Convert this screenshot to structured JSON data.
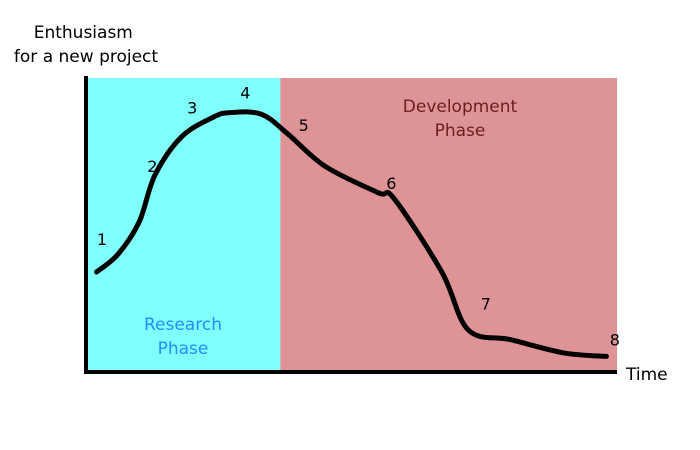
{
  "chart_data": {
    "type": "line",
    "ylabel_lines": [
      "Enthusiasm",
      "for a new project"
    ],
    "xlabel": "Time",
    "xlim": [
      0,
      1
    ],
    "ylim": [
      0,
      1
    ],
    "grid": false,
    "regions": [
      {
        "label_lines": [
          "Research",
          "Phase"
        ],
        "x_range": [
          0,
          0.366
        ],
        "fill": "#80FFFF",
        "text_color": "#1E90FF"
      },
      {
        "label_lines": [
          "Development",
          "Phase"
        ],
        "x_range": [
          0.366,
          1
        ],
        "fill": "#DE9396",
        "text_color": "#6B1F1F"
      }
    ],
    "curve": [
      {
        "x": 0.02,
        "y": 0.34
      },
      {
        "x": 0.06,
        "y": 0.4
      },
      {
        "x": 0.1,
        "y": 0.51
      },
      {
        "x": 0.13,
        "y": 0.67
      },
      {
        "x": 0.18,
        "y": 0.8
      },
      {
        "x": 0.24,
        "y": 0.867
      },
      {
        "x": 0.27,
        "y": 0.882
      },
      {
        "x": 0.33,
        "y": 0.877
      },
      {
        "x": 0.38,
        "y": 0.81
      },
      {
        "x": 0.45,
        "y": 0.7
      },
      {
        "x": 0.55,
        "y": 0.61
      },
      {
        "x": 0.58,
        "y": 0.59
      },
      {
        "x": 0.67,
        "y": 0.34
      },
      {
        "x": 0.72,
        "y": 0.143
      },
      {
        "x": 0.8,
        "y": 0.11
      },
      {
        "x": 0.9,
        "y": 0.065
      },
      {
        "x": 0.98,
        "y": 0.053
      }
    ],
    "points": [
      {
        "label": "1",
        "x": 0.03,
        "y": 0.453
      },
      {
        "label": "2",
        "x": 0.125,
        "y": 0.7
      },
      {
        "label": "3",
        "x": 0.2,
        "y": 0.9
      },
      {
        "label": "4",
        "x": 0.3,
        "y": 0.95
      },
      {
        "label": "5",
        "x": 0.41,
        "y": 0.84
      },
      {
        "label": "6",
        "x": 0.575,
        "y": 0.643
      },
      {
        "label": "7",
        "x": 0.753,
        "y": 0.233
      },
      {
        "label": "8",
        "x": 0.996,
        "y": 0.11
      }
    ],
    "colors": {
      "axis": "#000000",
      "line": "#000000"
    }
  }
}
